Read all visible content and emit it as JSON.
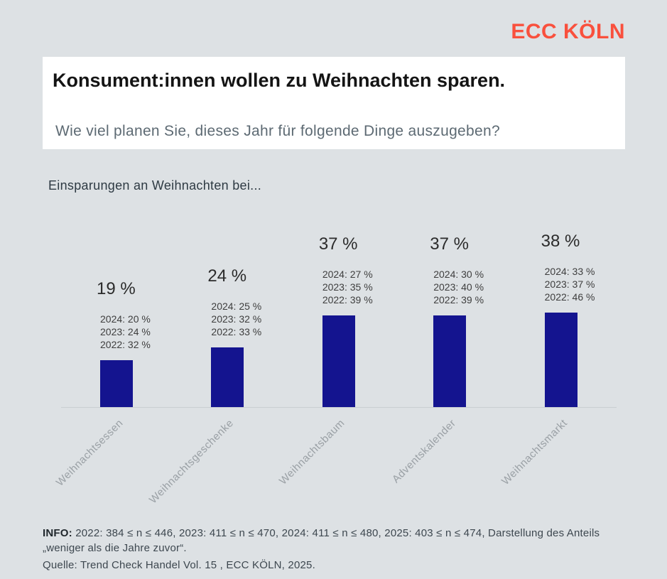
{
  "logo": {
    "text": "ECC KÖLN",
    "color": "#f9503d"
  },
  "header": {
    "title": "Konsument:innen wollen zu Weihnachten sparen.",
    "subtitle": "Wie viel planen Sie, dieses Jahr für folgende Dinge auszugeben?"
  },
  "chart_data": {
    "type": "bar",
    "title": "Einsparungen an Weihnachten bei...",
    "categories": [
      "Weihnachtsessen",
      "Weihnachtsgeschenke",
      "Weihnachtsbaum",
      "Adventskalender",
      "Weihnachtsmarkt"
    ],
    "values": [
      19,
      24,
      37,
      37,
      38
    ],
    "value_labels": [
      "19 %",
      "24 %",
      "37 %",
      "37 %",
      "38 %"
    ],
    "annotations": [
      [
        "2024: 20 %",
        "2023: 24 %",
        "2022: 32 %"
      ],
      [
        "2024: 25 %",
        "2023: 32 %",
        "2022: 33 %"
      ],
      [
        "2024: 27 %",
        "2023: 35 %",
        "2022: 39 %"
      ],
      [
        "2024: 30 %",
        "2023: 40 %",
        "2022: 39 %"
      ],
      [
        "2024: 33 %",
        "2023: 37 %",
        "2022: 46 %"
      ]
    ],
    "bar_color": "#14148f",
    "ylim": [
      0,
      40
    ],
    "grid": "baseline-only",
    "legend": "none"
  },
  "footer": {
    "info_label": "INFO:",
    "info_text": " 2022: 384 ≤ n ≤ 446, 2023: 411 ≤ n ≤ 470, 2024: 411 ≤ n ≤ 480, 2025: 403 ≤ n ≤ 474, Darstellung des Anteils „weniger als die Jahre zuvor“.",
    "source": "Quelle: Trend Check Handel Vol. 15 , ECC KÖLN, 2025."
  }
}
